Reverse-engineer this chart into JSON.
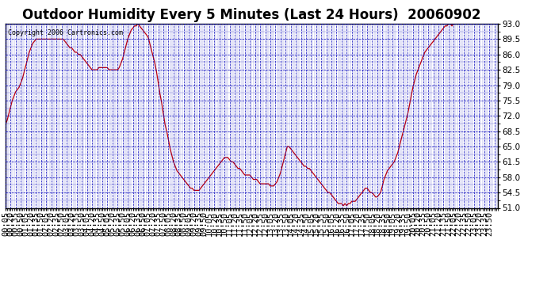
{
  "title": "Outdoor Humidity Every 5 Minutes (Last 24 Hours)  20060902",
  "copyright": "Copyright 2006 Cartronics.com",
  "line_color": "#cc0000",
  "bg_color": "#ffffff",
  "plot_bg_color": "#ffffff",
  "grid_color": "#0000bb",
  "axis_label_color": "#000000",
  "ylim": [
    51.0,
    93.0
  ],
  "yticks": [
    51.0,
    54.5,
    58.0,
    61.5,
    65.0,
    68.5,
    72.0,
    75.5,
    79.0,
    82.5,
    86.0,
    89.5,
    93.0
  ],
  "title_fontsize": 12,
  "tick_fontsize": 7.5,
  "humidity_data": [
    70.0,
    71.0,
    72.5,
    74.0,
    75.5,
    76.5,
    77.5,
    78.0,
    78.5,
    79.5,
    80.5,
    82.0,
    83.5,
    85.0,
    86.5,
    87.5,
    88.5,
    89.0,
    89.5,
    89.5,
    89.5,
    89.5,
    89.5,
    89.5,
    89.5,
    89.5,
    89.5,
    89.5,
    89.5,
    89.5,
    89.5,
    89.5,
    89.5,
    89.5,
    89.5,
    89.0,
    88.5,
    88.0,
    87.5,
    87.5,
    87.0,
    86.5,
    86.5,
    86.0,
    86.0,
    85.5,
    85.0,
    84.5,
    84.0,
    83.5,
    83.0,
    82.5,
    82.5,
    82.5,
    82.5,
    83.0,
    83.0,
    83.0,
    83.0,
    83.0,
    83.0,
    82.5,
    82.5,
    82.5,
    82.5,
    82.5,
    82.5,
    83.0,
    84.0,
    85.0,
    86.5,
    88.0,
    89.5,
    90.5,
    91.5,
    92.0,
    92.5,
    92.5,
    93.0,
    92.5,
    92.0,
    91.5,
    91.0,
    90.5,
    90.0,
    88.5,
    87.0,
    85.5,
    84.0,
    82.0,
    79.5,
    77.0,
    75.0,
    72.5,
    70.0,
    68.5,
    66.5,
    64.5,
    63.0,
    61.5,
    60.5,
    59.5,
    59.0,
    58.5,
    58.0,
    57.5,
    57.0,
    56.5,
    56.0,
    55.5,
    55.5,
    55.0,
    55.0,
    55.0,
    55.0,
    55.5,
    56.0,
    56.5,
    57.0,
    57.5,
    58.0,
    58.5,
    59.0,
    59.5,
    60.0,
    60.5,
    61.0,
    61.5,
    62.0,
    62.5,
    62.5,
    62.5,
    62.0,
    61.5,
    61.5,
    61.0,
    60.5,
    60.0,
    60.0,
    59.5,
    59.0,
    58.5,
    58.5,
    58.5,
    58.5,
    58.0,
    57.5,
    57.5,
    57.5,
    57.0,
    56.5,
    56.5,
    56.5,
    56.5,
    56.5,
    56.5,
    56.0,
    56.0,
    56.0,
    56.5,
    57.0,
    58.0,
    59.0,
    60.5,
    62.0,
    63.5,
    65.0,
    65.0,
    64.5,
    64.0,
    63.5,
    63.0,
    62.5,
    62.0,
    61.5,
    61.0,
    60.5,
    60.5,
    60.0,
    60.0,
    59.5,
    59.0,
    58.5,
    58.0,
    57.5,
    57.0,
    56.5,
    56.0,
    55.5,
    55.0,
    54.5,
    54.5,
    54.0,
    53.5,
    53.0,
    52.5,
    52.0,
    52.0,
    52.0,
    51.5,
    52.0,
    51.5,
    52.0,
    52.0,
    52.5,
    52.5,
    52.5,
    53.0,
    53.5,
    54.0,
    54.5,
    55.0,
    55.5,
    55.5,
    55.0,
    54.5,
    54.5,
    54.0,
    53.5,
    53.5,
    54.0,
    54.5,
    56.0,
    57.5,
    58.5,
    59.5,
    60.0,
    60.5,
    61.0,
    61.5,
    62.5,
    63.5,
    65.0,
    66.5,
    68.0,
    69.5,
    71.0,
    72.5,
    74.5,
    76.5,
    78.5,
    80.0,
    81.5,
    82.5,
    83.5,
    84.5,
    85.5,
    86.5,
    87.0,
    87.5,
    88.0,
    88.5,
    89.0,
    89.5,
    90.0,
    90.5,
    91.0,
    91.5,
    92.0,
    92.5,
    92.5,
    93.0,
    93.0,
    92.5,
    93.0,
    93.0,
    93.0,
    93.0,
    93.0,
    93.0,
    93.0,
    93.0,
    93.0,
    93.0,
    93.0,
    93.0,
    93.0,
    93.0,
    93.0,
    93.0,
    93.0,
    93.0,
    93.0,
    93.0,
    93.0,
    93.0,
    93.0,
    93.0,
    93.0,
    93.5,
    93.5
  ]
}
